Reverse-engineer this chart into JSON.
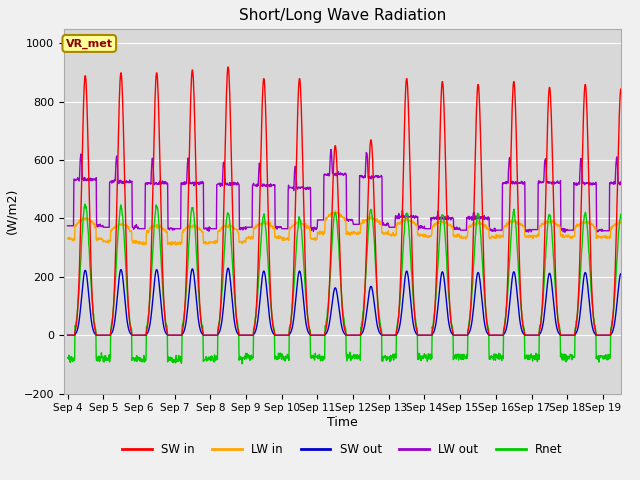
{
  "title": "Short/Long Wave Radiation",
  "xlabel": "Time",
  "ylabel": "(W/m2)",
  "ylim": [
    -200,
    1050
  ],
  "yticks": [
    -200,
    0,
    200,
    400,
    600,
    800,
    1000
  ],
  "n_days": 16,
  "start_day": 4,
  "colors": {
    "SW_in": "#ff0000",
    "LW_in": "#ffa500",
    "SW_out": "#0000cc",
    "LW_out": "#9900cc",
    "Rnet": "#00cc00"
  },
  "bg_color": "#e8e8e8",
  "plot_bg": "#d8d8d8",
  "annotation_text": "VR_met",
  "annotation_bg": "#ffff99",
  "annotation_border": "#aa8800",
  "legend_labels": [
    "SW in",
    "LW in",
    "SW out",
    "LW out",
    "Rnet"
  ],
  "legend_keys": [
    "SW_in",
    "LW_in",
    "SW_out",
    "LW_out",
    "Rnet"
  ],
  "sw_peaks": [
    890,
    900,
    900,
    910,
    920,
    880,
    880,
    650,
    670,
    880,
    870,
    860,
    870,
    850,
    860,
    845
  ],
  "lw_in_base": [
    330,
    320,
    315,
    315,
    320,
    335,
    330,
    350,
    350,
    345,
    340,
    335,
    340,
    340,
    338,
    335
  ],
  "lw_in_day_add": [
    70,
    60,
    60,
    60,
    55,
    50,
    55,
    70,
    50,
    50,
    50,
    50,
    50,
    50,
    50,
    50
  ],
  "lw_out_peaks": [
    620,
    610,
    605,
    605,
    600,
    590,
    580,
    635,
    630,
    425,
    420,
    425,
    610,
    610,
    605,
    610
  ],
  "lw_out_night": [
    375,
    370,
    365,
    365,
    365,
    370,
    365,
    395,
    380,
    370,
    365,
    360,
    360,
    362,
    360,
    358
  ],
  "rnet_day_peaks": [
    450,
    440,
    440,
    440,
    420,
    410,
    400,
    420,
    430,
    420,
    420,
    415,
    420,
    415,
    415,
    410
  ],
  "rnet_night": [
    -80,
    -80,
    -85,
    -85,
    -80,
    -75,
    -75,
    -75,
    -75,
    -75,
    -75,
    -75,
    -75,
    -75,
    -75,
    -75
  ]
}
